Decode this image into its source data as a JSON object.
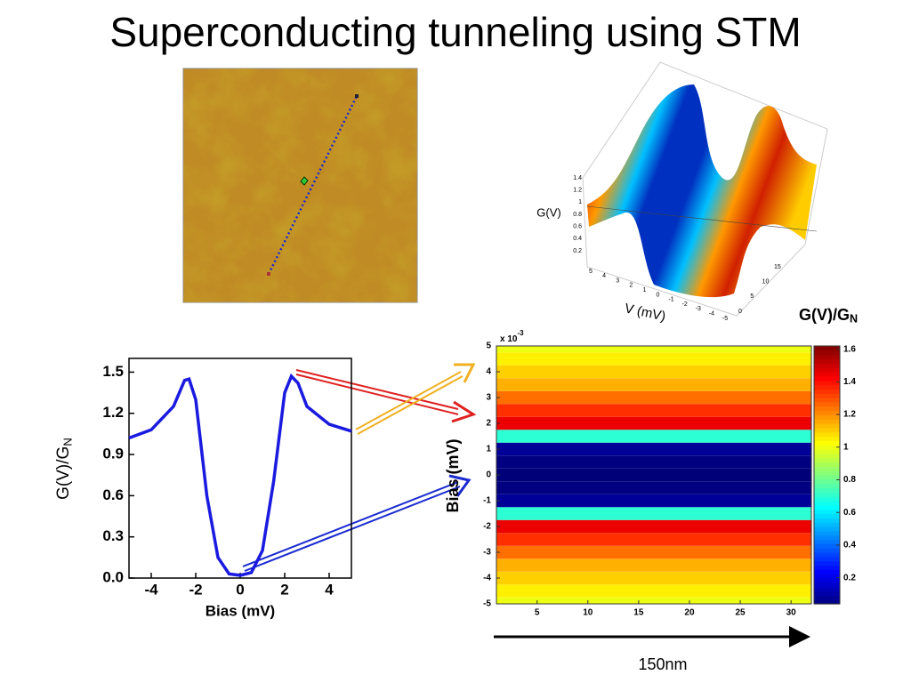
{
  "title": "Superconducting tunneling using STM",
  "scale_label": "150nm",
  "chart_data": [
    {
      "type": "line",
      "xlabel": "Bias (mV)",
      "ylabel": "G(V)/G",
      "ylabel_sub": "N",
      "x": [
        -5,
        -4,
        -3,
        -2.5,
        -2.3,
        -2,
        -1.5,
        -1,
        -0.5,
        0,
        0.5,
        1,
        1.5,
        2,
        2.3,
        2.6,
        3,
        4,
        5
      ],
      "series": [
        {
          "color": "#1a1ae0",
          "values": [
            1.02,
            1.08,
            1.25,
            1.44,
            1.45,
            1.3,
            0.6,
            0.15,
            0.03,
            0.02,
            0.04,
            0.2,
            0.7,
            1.35,
            1.47,
            1.42,
            1.25,
            1.12,
            1.07
          ]
        }
      ],
      "xlim": [
        -5,
        5
      ],
      "xticks": [
        -4,
        -2,
        0,
        2,
        4
      ],
      "ylim": [
        0,
        1.6
      ],
      "yticks": [
        {
          "value": 0,
          "label": "0.0"
        },
        0.3,
        0.6,
        0.9,
        1.2,
        1.5
      ]
    },
    {
      "type": "heatmap",
      "ylabel": "Bias (mV)",
      "y_multiplier": "x 10",
      "y_multiplier_exp": "-3",
      "colorbar_label": "G(V)/G",
      "colorbar_label_sub": "N",
      "colormap": "jet",
      "y": [
        -5,
        -4.5,
        -4,
        -3.5,
        -3,
        -2.5,
        -2,
        -1.5,
        -1,
        -0.5,
        0,
        0.5,
        1,
        1.5,
        2,
        2.5,
        3,
        3.5,
        4,
        4.5,
        5
      ],
      "values": [
        1.0,
        1.05,
        1.1,
        1.15,
        1.25,
        1.35,
        1.45,
        0.7,
        0.08,
        0.04,
        0.03,
        0.04,
        0.08,
        0.7,
        1.45,
        1.35,
        1.25,
        1.15,
        1.1,
        1.05,
        1.0
      ],
      "xlim": [
        1,
        32
      ],
      "xticks": [
        5,
        10,
        15,
        20,
        25,
        30
      ],
      "ylim": [
        -5,
        5
      ],
      "yticks": [
        -5,
        -4,
        -3,
        -2,
        -1,
        0,
        1,
        2,
        3,
        4,
        5
      ],
      "clim": [
        0.04,
        1.62
      ],
      "cticks": [
        0.2,
        0.4,
        0.6,
        0.8,
        1,
        1.2,
        1.4,
        1.6
      ]
    },
    {
      "type": "surface",
      "zlabel": "G(V)",
      "xlabel": "V (mV)",
      "zticks": [
        0.2,
        0.4,
        0.6,
        0.8,
        1,
        1.2,
        1.4
      ],
      "xticks": [
        5,
        4,
        3,
        2,
        1,
        0,
        -1,
        -2,
        -3,
        -4,
        -5
      ],
      "yticks": [
        0,
        5,
        10,
        15
      ]
    }
  ]
}
